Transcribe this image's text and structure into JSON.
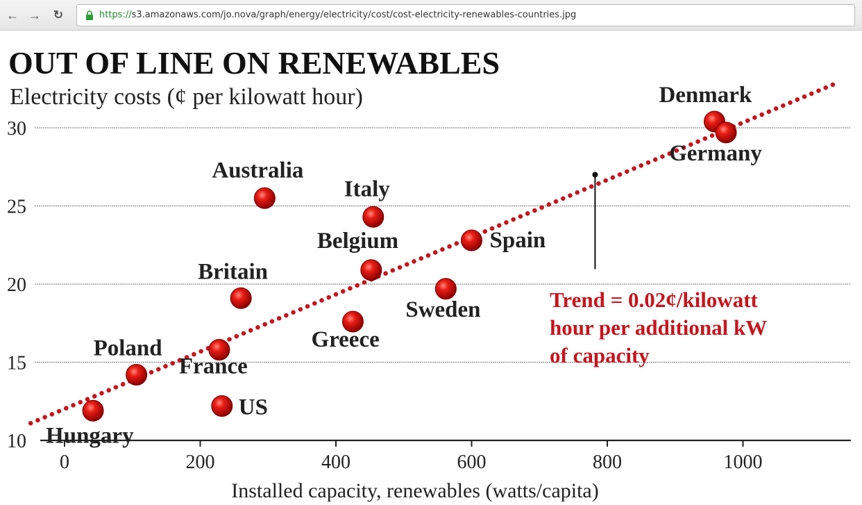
{
  "browser": {
    "url_scheme": "https://",
    "url_rest": "s3.amazonaws.com/jo.nova/graph/energy/electricity/cost/cost-electricity-renewables-countries.jpg"
  },
  "chart_data": {
    "type": "scatter",
    "title": "OUT OF LINE ON RENEWABLES",
    "subtitle": "Electricity costs (¢ per kilowatt hour)",
    "xlabel": "Installed capacity, renewables (watts/capita)",
    "ylabel": "",
    "xlim": [
      0,
      1150
    ],
    "ylim": [
      10,
      31
    ],
    "xticks": [
      0,
      200,
      400,
      600,
      800,
      1000
    ],
    "yticks": [
      10,
      15,
      20,
      25,
      30
    ],
    "grid": true,
    "marker_color": "#d01010",
    "trend_color": "#c8141c",
    "points": [
      {
        "label": "Hungary",
        "x": 42,
        "y": 11.9
      },
      {
        "label": "Poland",
        "x": 106,
        "y": 14.2
      },
      {
        "label": "France",
        "x": 228,
        "y": 15.8
      },
      {
        "label": "US",
        "x": 232,
        "y": 12.2
      },
      {
        "label": "Britain",
        "x": 260,
        "y": 19.1
      },
      {
        "label": "Australia",
        "x": 295,
        "y": 25.5
      },
      {
        "label": "Greece",
        "x": 425,
        "y": 17.6
      },
      {
        "label": "Italy",
        "x": 455,
        "y": 24.3
      },
      {
        "label": "Belgium",
        "x": 452,
        "y": 20.9
      },
      {
        "label": "Sweden",
        "x": 562,
        "y": 19.7
      },
      {
        "label": "Spain",
        "x": 600,
        "y": 22.8
      },
      {
        "label": "Denmark",
        "x": 958,
        "y": 30.4
      },
      {
        "label": "Germany",
        "x": 975,
        "y": 29.7
      }
    ],
    "trend": {
      "x": [
        -50,
        1140
      ],
      "y": [
        11.1,
        32.9
      ]
    },
    "annotation": {
      "lines": [
        "Trend = 0.02¢/kilowatt",
        "hour per additional kW",
        "of capacity"
      ],
      "pointer_x": 782,
      "pointer_y": 27.0
    }
  }
}
